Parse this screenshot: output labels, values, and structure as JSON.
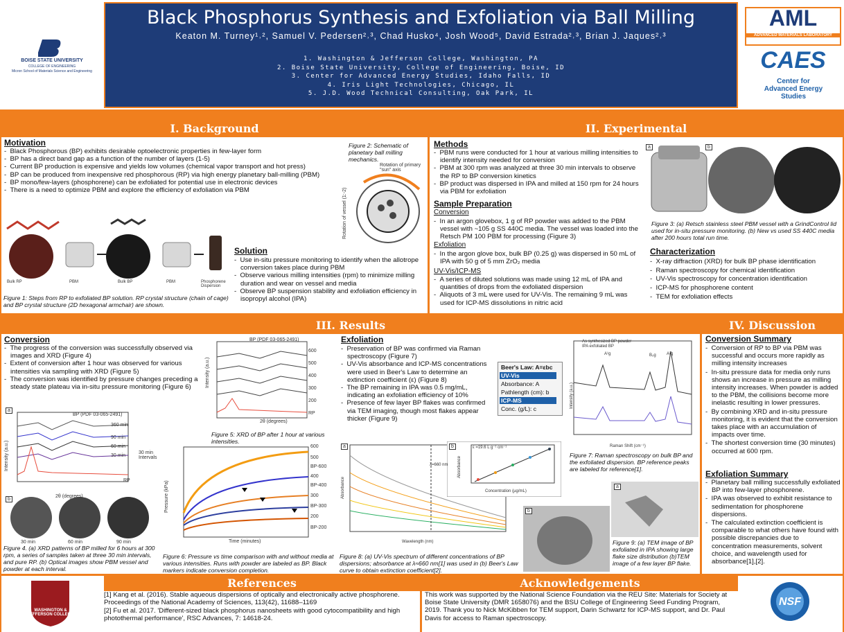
{
  "header": {
    "title": "Black Phosphorus Synthesis and Exfoliation via Ball Milling",
    "authors": "Keaton M. Turney¹˒², Samuel V. Pedersen²˒³, Chad Husko⁴, Josh Wood⁵, David Estrada²˒³, Brian J. Jaques²˒³",
    "affiliations": [
      "1. Washington & Jefferson College, Washington, PA",
      "2. Boise State University, College of Engineering, Boise, ID",
      "3. Center for Advanced Energy Studies, Idaho Falls, ID",
      "4. Iris Light Technologies, Chicago, IL",
      "5. J.D. Wood Technical Consulting, Oak Park, IL"
    ],
    "left_logo": [
      "BOISE STATE UNIVERSITY",
      "COLLEGE OF ENGINEERING",
      "Micron School of Materials Science and Engineering"
    ],
    "right_logo": [
      "AML",
      "ADVANCED MATERIALS LABORATORY",
      "CAES",
      "Center for Advanced Energy Studies"
    ]
  },
  "background": {
    "heading": "I. Background",
    "motivation_heading": "Motivation",
    "motivation": [
      "Black Phosphorous (BP) exhibits desirable optoelectronic properties in few-layer form",
      "BP has a direct band gap as a function of the number of layers (1-5)",
      "Current BP production is expensive and yields low volumes (chemical vapor transport and hot press)",
      "BP can be produced from inexpensive red phosphorous (RP) via high energy planetary ball-milling (PBM)",
      "BP mono/few-layers (phosphorene) can be exfoliated for potential use in electronic devices",
      "There is a need to optimize PBM and explore the efficiency of exfoliation via PBM"
    ],
    "figure1_labels": [
      "Bulk RP",
      "PBM",
      "Bulk BP",
      "PBM",
      "Phosphorene Dispersion"
    ],
    "figure1_caption": "Figure 1: Steps from RP to exfoliated BP solution. RP crystal structure (chain of cage) and BP crystal structure (2D hexagonal armchair) are shown.",
    "figure2_caption": "Figure 2: Schematic of planetary ball milling mechanics.",
    "figure2_labels": [
      "Rotation of primary \"sun\" axis",
      "Rotation of vessel (1:-2)"
    ],
    "solution_heading": "Solution",
    "solution": [
      "Use in-situ pressure monitoring to identify when the allotrope conversion takes place during PBM",
      "Observe various milling intensities (rpm) to minimize milling duration and wear on vessel and media",
      "Observe BP suspension stability and exfoliation efficiency in isopropyl alcohol (IPA)"
    ]
  },
  "experimental": {
    "heading": "II. Experimental",
    "methods_heading": "Methods",
    "methods": [
      "PBM runs were conducted for 1 hour at various milling intensities to identify intensity needed for conversion",
      "PBM at 300 rpm was analyzed at three 30 min intervals to observe the RP to BP conversion kinetics",
      "BP product was dispersed in IPA and milled at 150 rpm for 24 hours via PBM for exfoliation"
    ],
    "prep_heading": "Sample Preparation",
    "conversion_heading": "Conversion",
    "conversion": [
      "In an argon glovebox, 1 g of RP powder was added to the PBM vessel with ~105 g SS 440C media. The vessel was loaded into the Retsch PM 100 PBM for processing (Figure 3)"
    ],
    "exfoliation_heading": "Exfoliation",
    "exfoliation": [
      "In the argon glove box, bulk BP (0.25 g) was dispersed in 50 mL of IPA with 50 g of 5 mm ZrO₂ media"
    ],
    "uvvis_heading": "UV-Vis/ICP-MS",
    "uvvis": [
      "A series of diluted solutions was made using 12 mL of IPA and quantities of drops from the exfoliated dispersion",
      "Aliquots of 3 mL were used for UV-Vis. The remaining 9 mL was used for ICP-MS dissolutions in nitric acid"
    ],
    "figure3_labels": [
      "a",
      "b"
    ],
    "figure3_caption": "Figure 3: (a) Retsch stainless steel PBM vessel with a GrindControl lid used for in-situ pressure monitoring. (b) New vs used SS 440C media after 200 hours total run time.",
    "characterization_heading": "Characterization",
    "characterization": [
      "X-ray diffraction (XRD) for bulk BP phase identification",
      "Raman spectroscopy for chemical identification",
      "UV-Vis spectroscopy for concentration identification",
      "ICP-MS for phosphorene content",
      "TEM for exfoliation effects"
    ]
  },
  "results": {
    "heading": "III. Results",
    "conversion_heading": "Conversion",
    "conversion": [
      "The progress of the conversion was successfully observed via images and XRD (Figure 4)",
      "Extent of conversion after 1 hour was observed for various intensities via sampling with XRD (Figure 5)",
      "The conversion was identified by pressure changes preceding a steady state plateau via in-situ pressure monitoring (Figure 6)"
    ],
    "figure4_texts": [
      "a",
      "BP (PDF 03-065-2491)",
      "360 min",
      "90 min",
      "60 min",
      "30 min",
      "RP",
      "30 min Intervals",
      "Intensity (a.u.)",
      "2θ (degrees)",
      "b",
      "30 min",
      "60 min",
      "90 min"
    ],
    "figure4_caption": "Figure 4. (a) XRD patterns of BP milled for 6 hours at 300 rpm, a series of samples taken at three 30 min intervals, and pure RP. (b) Optical images show PBM vessel and powder at each interval.",
    "figure5_texts": [
      "BP (PDF 03-065-2491)",
      "600",
      "500",
      "400",
      "300",
      "200",
      "RP",
      "Intensity (a.u.)",
      "2θ (degrees)"
    ],
    "figure5_caption": "Figure 5: XRD of BP after 1 hour at various intensities.",
    "figure6_texts": [
      "600",
      "500",
      "BP-600",
      "400",
      "BP-400",
      "300",
      "BP-300",
      "200",
      "BP-200",
      "Pressure (kPa)",
      "Time (minutes)"
    ],
    "figure6_caption": "Figure 6: Pressure vs time comparison with and without media at various intensities. Runs with powder are labeled as BP. Black markers indicate conversion completion.",
    "exfoliation_heading": "Exfoliation",
    "exfoliation": [
      "Preservation of BP was confirmed via Raman spectroscopy (Figure 7)",
      "UV-Vis absorbance and ICP-MS concentrations were used in Beer's Law to determine an extinction coefficient (ε) (Figure 8)",
      "The BP remaining in IPA was 0.5 mg/mL, indicating an exfoliation efficiency of 10%",
      "Presence of few layer BP flakes was confirmed via TEM imaging, though most flakes appear thicker (Figure 9)"
    ],
    "beers_law": [
      "Beer's Law: A=εbc",
      "UV-Vis",
      "Absorbance: A",
      "Pathlength (cm): b",
      "ICP-MS",
      "Conc. (g/L): c"
    ],
    "figure7_texts": [
      "As synthesized BP powder",
      "IPA exfoliated BP",
      "A¹g",
      "B₂g",
      "A²g",
      "Intensity (a.u.)",
      "Raman Shift (cm⁻¹)"
    ],
    "figure7_caption": "Figure 7: Raman spectroscopy on bulk BP and the exfoliated dispersion. BP reference peaks are labeled for reference[1].",
    "figure8_texts": [
      "a",
      "Absorbance",
      "λ=660 nm",
      "Wavelength (nm)",
      "b",
      "ε =19.6 L g⁻¹ cm⁻¹",
      "Absorbance",
      "Concentration (µg/mL)"
    ],
    "figure8_caption": "Figure 8: (a) UV-Vis spectrum of different concentrations of BP dispersions; absorbance at λ≈660 nm[1] was used in (b) Beer's Law curve to obtain extinction coefficient[2].",
    "figure9_labels": [
      "a",
      "b"
    ],
    "figure9_caption": "Figure 9: (a) TEM image of BP exfoliated in IPA showing large flake size distribution (b)TEM image of a few layer BP flake."
  },
  "discussion": {
    "heading": "IV. Discussion",
    "conversion_heading": "Conversion Summary",
    "conversion": [
      "Conversion of RP to BP via PBM was successful and occurs more rapidly as milling intensity increases",
      "In-situ pressure data for media only runs shows an increase in pressure as milling intensity increases. When powder is added to the PBM, the collisions become more inelastic resulting in lower pressures.",
      "By combining XRD and in-situ pressure monitoring, it is evident that the conversion takes place with an accumulation of impacts over time.",
      "The shortest conversion time (30 minutes) occurred at 600 rpm."
    ],
    "exfoliation_heading": "Exfoliation Summary",
    "exfoliation": [
      "Planetary ball milling successfully exfoliated BP into few-layer phosphorene.",
      "IPA was observed to exhibit resistance to sedimentation for phosphorene dispersions.",
      "The calculated extinction coefficient is comparable to what others have found with possible discrepancies due to concentration measurements, solvent choice, and wavelength used for absorbance[1],[2]."
    ]
  },
  "references": {
    "heading": "References",
    "items": [
      "[1] Kang et al. (2016). Stable aqueous dispersions of optically and electronically active phosphorene. Proceedings of the National Academy of Sciences, 113(42), 11688–1169",
      "[2] Fu et al. 2017. 'Different-sized black phosphorus nanosheets with good cytocompatibility and high photothermal performance', RSC Advances, 7: 14618-24."
    ]
  },
  "acknowledgements": {
    "heading": "Acknowledgements",
    "text": "This work was supported by the National Science Foundation via the REU Site: Materials for Society at Boise State University (DMR 1658076) and the BSU College of Engineering Seed Funding Program, 2019. Thank you to Nick McKibben for TEM support, Darin Schwartz for ICP-MS support, and Dr. Paul Davis for access to Raman spectroscopy."
  },
  "footer_logos": [
    "WASHINGTON & JEFFERSON COLLEGE",
    "NSF"
  ]
}
